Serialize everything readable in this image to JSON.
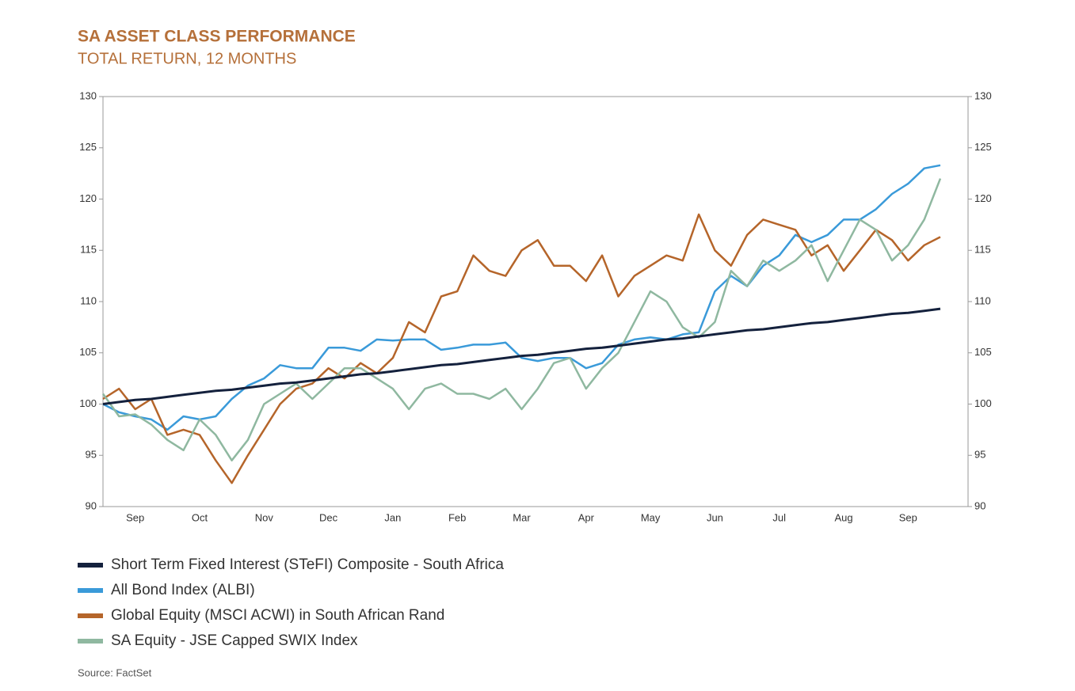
{
  "chart_data": {
    "type": "line",
    "title": "SA ASSET CLASS PERFORMANCE",
    "subtitle": "TOTAL RETURN, 12 MONTHS",
    "source": "Source: FactSet",
    "categories": [
      null,
      null,
      "Sep",
      null,
      null,
      null,
      "Oct",
      null,
      null,
      null,
      "Nov",
      null,
      null,
      null,
      "Dec",
      null,
      null,
      null,
      "Jan",
      null,
      null,
      null,
      "Feb",
      null,
      null,
      null,
      "Mar",
      null,
      null,
      null,
      "Apr",
      null,
      null,
      null,
      "May",
      null,
      null,
      null,
      "Jun",
      null,
      null,
      null,
      "Jul",
      null,
      null,
      null,
      "Aug",
      null,
      null,
      null,
      "Sep",
      null,
      null
    ],
    "ylim": [
      90,
      130
    ],
    "yticks": [
      90,
      95,
      100,
      105,
      110,
      115,
      120,
      125,
      130
    ],
    "y2lim": [
      90,
      130
    ],
    "y2ticks": [
      90,
      95,
      100,
      105,
      110,
      115,
      120,
      125,
      130
    ],
    "series": [
      {
        "name": "Short Term Fixed Interest (STeFI) Composite - South Africa",
        "color": "#14213d",
        "values": [
          100.0,
          100.2,
          100.4,
          100.5,
          100.7,
          100.9,
          101.1,
          101.3,
          101.4,
          101.6,
          101.8,
          102.0,
          102.1,
          102.3,
          102.5,
          102.7,
          102.9,
          103.0,
          103.2,
          103.4,
          103.6,
          103.8,
          103.9,
          104.1,
          104.3,
          104.5,
          104.7,
          104.8,
          105.0,
          105.2,
          105.4,
          105.5,
          105.7,
          105.9,
          106.1,
          106.3,
          106.4,
          106.6,
          106.8,
          107.0,
          107.2,
          107.3,
          107.5,
          107.7,
          107.9,
          108.0,
          108.2,
          108.4,
          108.6,
          108.8,
          108.9,
          109.1,
          109.3
        ]
      },
      {
        "name": "All Bond Index (ALBI)",
        "color": "#3a9ad9",
        "values": [
          100,
          99.2,
          98.8,
          98.5,
          97.5,
          98.8,
          98.5,
          98.8,
          100.5,
          101.8,
          102.5,
          103.8,
          103.5,
          103.5,
          105.5,
          105.5,
          105.2,
          106.3,
          106.2,
          106.3,
          106.3,
          105.3,
          105.5,
          105.8,
          105.8,
          106.0,
          104.5,
          104.2,
          104.5,
          104.5,
          103.5,
          104.0,
          105.8,
          106.3,
          106.5,
          106.3,
          106.8,
          107.0,
          111.0,
          112.5,
          111.5,
          113.5,
          114.5,
          116.5,
          115.8,
          116.5,
          118.0,
          118.0,
          119.0,
          120.5,
          121.5,
          123.0,
          123.3
        ]
      },
      {
        "name": "Global Equity (MSCI ACWI) in South African Rand",
        "color": "#b5652a",
        "values": [
          100.5,
          101.5,
          99.5,
          100.5,
          97.0,
          97.5,
          97.0,
          94.5,
          92.3,
          95.0,
          97.5,
          100.0,
          101.5,
          102.0,
          103.5,
          102.5,
          104.0,
          103.0,
          104.5,
          108.0,
          107.0,
          110.5,
          111.0,
          114.5,
          113.0,
          112.5,
          115.0,
          116.0,
          113.5,
          113.5,
          112.0,
          114.5,
          110.5,
          112.5,
          113.5,
          114.5,
          114.0,
          118.5,
          115.0,
          113.5,
          116.5,
          118.0,
          117.5,
          117.0,
          114.5,
          115.5,
          113.0,
          115.0,
          117.0,
          116.0,
          114.0,
          115.5,
          116.3
        ]
      },
      {
        "name": "SA Equity - JSE Capped SWIX Index",
        "color": "#8fb8a0",
        "values": [
          101.0,
          98.8,
          99.0,
          98.0,
          96.5,
          95.5,
          98.5,
          97.0,
          94.5,
          96.5,
          100.0,
          101.0,
          102.0,
          100.5,
          102.0,
          103.5,
          103.5,
          102.5,
          101.5,
          99.5,
          101.5,
          102.0,
          101.0,
          101.0,
          100.5,
          101.5,
          99.5,
          101.5,
          104.0,
          104.5,
          101.5,
          103.5,
          105.0,
          108.0,
          111.0,
          110.0,
          107.5,
          106.5,
          108.0,
          113.0,
          111.5,
          114.0,
          113.0,
          114.0,
          115.5,
          112.0,
          115.0,
          118.0,
          117.0,
          114.0,
          115.5,
          118.0,
          122.0
        ]
      }
    ]
  }
}
